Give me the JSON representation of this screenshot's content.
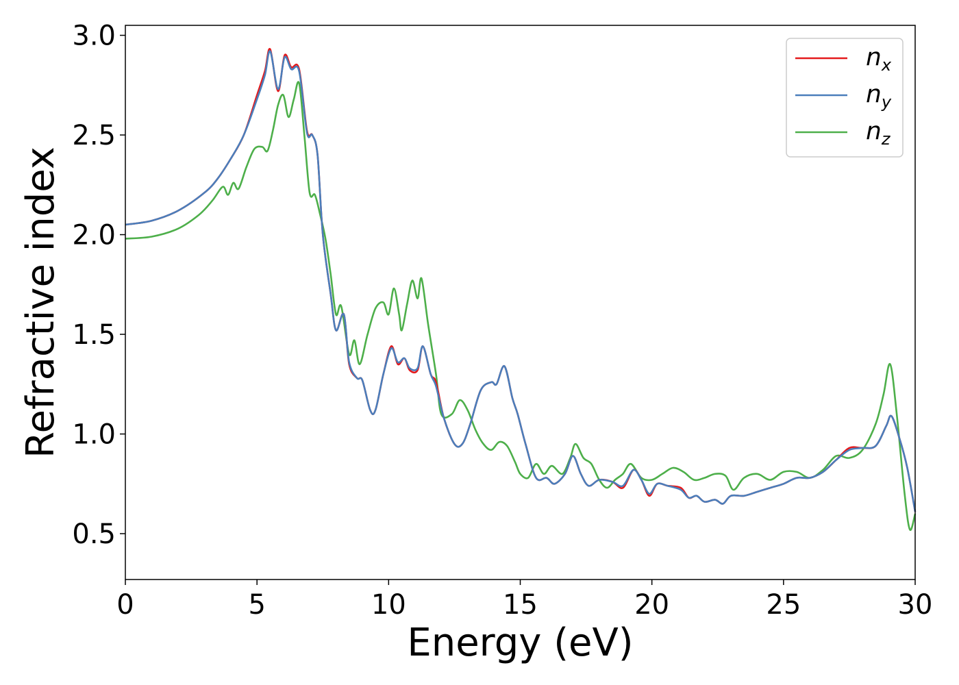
{
  "chart_data": {
    "type": "line",
    "title": "",
    "xlabel": "Energy (eV)",
    "ylabel": "Refractive index",
    "xlim": [
      0,
      30
    ],
    "ylim": [
      0.27,
      3.05
    ],
    "xticks": [
      0,
      5,
      10,
      15,
      20,
      25,
      30
    ],
    "yticks": [
      0.5,
      1.0,
      1.5,
      2.0,
      2.5,
      3.0
    ],
    "xtick_labels": [
      "0",
      "5",
      "10",
      "15",
      "20",
      "25",
      "30"
    ],
    "ytick_labels": [
      "0.5",
      "1.0",
      "1.5",
      "2.0",
      "2.5",
      "3.0"
    ],
    "grid": false,
    "legend_position": "top-right",
    "series": [
      {
        "name": "n_x",
        "base": "n",
        "sub": "x",
        "color": "#e41a1c",
        "points": [
          [
            0,
            2.05
          ],
          [
            1,
            2.07
          ],
          [
            2,
            2.12
          ],
          [
            3,
            2.21
          ],
          [
            3.5,
            2.28
          ],
          [
            4,
            2.38
          ],
          [
            4.5,
            2.5
          ],
          [
            5,
            2.7
          ],
          [
            5.3,
            2.82
          ],
          [
            5.5,
            2.93
          ],
          [
            5.8,
            2.72
          ],
          [
            6.05,
            2.9
          ],
          [
            6.3,
            2.84
          ],
          [
            6.6,
            2.83
          ],
          [
            6.9,
            2.52
          ],
          [
            7.1,
            2.5
          ],
          [
            7.3,
            2.4
          ],
          [
            7.5,
            2.0
          ],
          [
            7.8,
            1.7
          ],
          [
            8.0,
            1.52
          ],
          [
            8.3,
            1.6
          ],
          [
            8.5,
            1.35
          ],
          [
            8.8,
            1.28
          ],
          [
            9.0,
            1.27
          ],
          [
            9.3,
            1.12
          ],
          [
            9.5,
            1.12
          ],
          [
            9.8,
            1.3
          ],
          [
            10.1,
            1.44
          ],
          [
            10.35,
            1.35
          ],
          [
            10.6,
            1.38
          ],
          [
            10.8,
            1.32
          ],
          [
            11.1,
            1.32
          ],
          [
            11.3,
            1.44
          ],
          [
            11.6,
            1.3
          ],
          [
            11.8,
            1.26
          ],
          [
            12.1,
            1.08
          ],
          [
            12.5,
            0.95
          ],
          [
            12.8,
            0.95
          ],
          [
            13.1,
            1.05
          ],
          [
            13.5,
            1.22
          ],
          [
            13.9,
            1.26
          ],
          [
            14.1,
            1.25
          ],
          [
            14.4,
            1.34
          ],
          [
            14.7,
            1.18
          ],
          [
            14.9,
            1.1
          ],
          [
            15.2,
            0.95
          ],
          [
            15.6,
            0.78
          ],
          [
            16.0,
            0.78
          ],
          [
            16.3,
            0.75
          ],
          [
            16.7,
            0.8
          ],
          [
            17.0,
            0.89
          ],
          [
            17.3,
            0.8
          ],
          [
            17.6,
            0.74
          ],
          [
            18.0,
            0.77
          ],
          [
            18.5,
            0.76
          ],
          [
            18.9,
            0.73
          ],
          [
            19.3,
            0.82
          ],
          [
            19.6,
            0.77
          ],
          [
            19.9,
            0.69
          ],
          [
            20.2,
            0.75
          ],
          [
            20.6,
            0.74
          ],
          [
            21.1,
            0.73
          ],
          [
            21.4,
            0.68
          ],
          [
            21.7,
            0.69
          ],
          [
            22.0,
            0.66
          ],
          [
            22.4,
            0.67
          ],
          [
            22.7,
            0.65
          ],
          [
            23.0,
            0.69
          ],
          [
            23.5,
            0.69
          ],
          [
            24.0,
            0.71
          ],
          [
            24.5,
            0.73
          ],
          [
            25.0,
            0.75
          ],
          [
            25.5,
            0.78
          ],
          [
            26.0,
            0.78
          ],
          [
            26.5,
            0.81
          ],
          [
            27.0,
            0.87
          ],
          [
            27.5,
            0.93
          ],
          [
            28.0,
            0.93
          ],
          [
            28.5,
            0.94
          ],
          [
            28.9,
            1.04
          ],
          [
            29.1,
            1.09
          ],
          [
            29.4,
            0.98
          ],
          [
            29.7,
            0.83
          ],
          [
            30,
            0.61
          ]
        ]
      },
      {
        "name": "n_y",
        "base": "n",
        "sub": "y",
        "color": "#4a7ebb",
        "points": [
          [
            0,
            2.05
          ],
          [
            1,
            2.07
          ],
          [
            2,
            2.12
          ],
          [
            3,
            2.21
          ],
          [
            3.5,
            2.28
          ],
          [
            4,
            2.38
          ],
          [
            4.5,
            2.5
          ],
          [
            5,
            2.68
          ],
          [
            5.3,
            2.8
          ],
          [
            5.5,
            2.92
          ],
          [
            5.8,
            2.73
          ],
          [
            6.05,
            2.89
          ],
          [
            6.3,
            2.83
          ],
          [
            6.6,
            2.82
          ],
          [
            6.9,
            2.51
          ],
          [
            7.1,
            2.5
          ],
          [
            7.3,
            2.4
          ],
          [
            7.5,
            2.0
          ],
          [
            7.8,
            1.7
          ],
          [
            8.0,
            1.52
          ],
          [
            8.3,
            1.6
          ],
          [
            8.5,
            1.36
          ],
          [
            8.8,
            1.28
          ],
          [
            9.0,
            1.27
          ],
          [
            9.3,
            1.12
          ],
          [
            9.5,
            1.12
          ],
          [
            9.8,
            1.3
          ],
          [
            10.1,
            1.43
          ],
          [
            10.35,
            1.36
          ],
          [
            10.6,
            1.38
          ],
          [
            10.8,
            1.33
          ],
          [
            11.1,
            1.33
          ],
          [
            11.3,
            1.44
          ],
          [
            11.6,
            1.3
          ],
          [
            11.8,
            1.24
          ],
          [
            12.1,
            1.08
          ],
          [
            12.5,
            0.95
          ],
          [
            12.8,
            0.95
          ],
          [
            13.1,
            1.05
          ],
          [
            13.5,
            1.22
          ],
          [
            13.9,
            1.26
          ],
          [
            14.1,
            1.25
          ],
          [
            14.4,
            1.34
          ],
          [
            14.7,
            1.18
          ],
          [
            14.9,
            1.1
          ],
          [
            15.2,
            0.95
          ],
          [
            15.6,
            0.78
          ],
          [
            16.0,
            0.78
          ],
          [
            16.3,
            0.75
          ],
          [
            16.7,
            0.8
          ],
          [
            17.0,
            0.89
          ],
          [
            17.3,
            0.8
          ],
          [
            17.6,
            0.74
          ],
          [
            18.0,
            0.77
          ],
          [
            18.5,
            0.76
          ],
          [
            18.9,
            0.74
          ],
          [
            19.3,
            0.82
          ],
          [
            19.6,
            0.77
          ],
          [
            19.9,
            0.7
          ],
          [
            20.2,
            0.75
          ],
          [
            20.6,
            0.74
          ],
          [
            21.1,
            0.72
          ],
          [
            21.4,
            0.68
          ],
          [
            21.7,
            0.69
          ],
          [
            22.0,
            0.66
          ],
          [
            22.4,
            0.67
          ],
          [
            22.7,
            0.65
          ],
          [
            23.0,
            0.69
          ],
          [
            23.5,
            0.69
          ],
          [
            24.0,
            0.71
          ],
          [
            24.5,
            0.73
          ],
          [
            25.0,
            0.75
          ],
          [
            25.5,
            0.78
          ],
          [
            26.0,
            0.78
          ],
          [
            26.5,
            0.81
          ],
          [
            27.0,
            0.87
          ],
          [
            27.5,
            0.92
          ],
          [
            28.0,
            0.93
          ],
          [
            28.5,
            0.94
          ],
          [
            28.9,
            1.04
          ],
          [
            29.1,
            1.09
          ],
          [
            29.4,
            0.98
          ],
          [
            29.7,
            0.83
          ],
          [
            30,
            0.61
          ]
        ]
      },
      {
        "name": "n_z",
        "base": "n",
        "sub": "z",
        "color": "#4daf4a",
        "points": [
          [
            0,
            1.98
          ],
          [
            1,
            1.99
          ],
          [
            2,
            2.03
          ],
          [
            2.8,
            2.1
          ],
          [
            3.3,
            2.17
          ],
          [
            3.7,
            2.24
          ],
          [
            3.9,
            2.2
          ],
          [
            4.1,
            2.26
          ],
          [
            4.3,
            2.23
          ],
          [
            4.6,
            2.34
          ],
          [
            4.9,
            2.43
          ],
          [
            5.2,
            2.44
          ],
          [
            5.4,
            2.42
          ],
          [
            5.6,
            2.52
          ],
          [
            5.8,
            2.65
          ],
          [
            6.0,
            2.7
          ],
          [
            6.2,
            2.59
          ],
          [
            6.4,
            2.68
          ],
          [
            6.6,
            2.76
          ],
          [
            6.8,
            2.5
          ],
          [
            7.0,
            2.21
          ],
          [
            7.2,
            2.2
          ],
          [
            7.4,
            2.1
          ],
          [
            7.6,
            1.98
          ],
          [
            7.8,
            1.8
          ],
          [
            8.0,
            1.6
          ],
          [
            8.2,
            1.64
          ],
          [
            8.5,
            1.4
          ],
          [
            8.7,
            1.47
          ],
          [
            8.9,
            1.35
          ],
          [
            9.2,
            1.5
          ],
          [
            9.5,
            1.63
          ],
          [
            9.8,
            1.66
          ],
          [
            10.0,
            1.6
          ],
          [
            10.2,
            1.73
          ],
          [
            10.4,
            1.6
          ],
          [
            10.5,
            1.52
          ],
          [
            10.7,
            1.65
          ],
          [
            10.9,
            1.77
          ],
          [
            11.1,
            1.68
          ],
          [
            11.25,
            1.78
          ],
          [
            11.5,
            1.55
          ],
          [
            11.8,
            1.3
          ],
          [
            12.0,
            1.1
          ],
          [
            12.4,
            1.1
          ],
          [
            12.7,
            1.17
          ],
          [
            13.0,
            1.12
          ],
          [
            13.3,
            1.02
          ],
          [
            13.6,
            0.95
          ],
          [
            13.9,
            0.92
          ],
          [
            14.2,
            0.96
          ],
          [
            14.5,
            0.94
          ],
          [
            14.8,
            0.86
          ],
          [
            15.0,
            0.8
          ],
          [
            15.3,
            0.78
          ],
          [
            15.6,
            0.85
          ],
          [
            15.9,
            0.8
          ],
          [
            16.2,
            0.84
          ],
          [
            16.6,
            0.8
          ],
          [
            16.9,
            0.88
          ],
          [
            17.1,
            0.95
          ],
          [
            17.4,
            0.88
          ],
          [
            17.7,
            0.85
          ],
          [
            18.0,
            0.77
          ],
          [
            18.3,
            0.73
          ],
          [
            18.6,
            0.77
          ],
          [
            18.9,
            0.8
          ],
          [
            19.2,
            0.85
          ],
          [
            19.6,
            0.78
          ],
          [
            20.0,
            0.77
          ],
          [
            20.4,
            0.8
          ],
          [
            20.8,
            0.83
          ],
          [
            21.2,
            0.81
          ],
          [
            21.6,
            0.77
          ],
          [
            22.0,
            0.78
          ],
          [
            22.4,
            0.8
          ],
          [
            22.8,
            0.79
          ],
          [
            23.1,
            0.72
          ],
          [
            23.5,
            0.78
          ],
          [
            24.0,
            0.8
          ],
          [
            24.5,
            0.77
          ],
          [
            25.0,
            0.81
          ],
          [
            25.5,
            0.81
          ],
          [
            26.0,
            0.78
          ],
          [
            26.5,
            0.82
          ],
          [
            27.0,
            0.89
          ],
          [
            27.5,
            0.88
          ],
          [
            28.0,
            0.92
          ],
          [
            28.5,
            1.05
          ],
          [
            28.8,
            1.2
          ],
          [
            29.05,
            1.35
          ],
          [
            29.3,
            1.1
          ],
          [
            29.6,
            0.7
          ],
          [
            29.8,
            0.52
          ],
          [
            30,
            0.6
          ]
        ]
      }
    ]
  }
}
